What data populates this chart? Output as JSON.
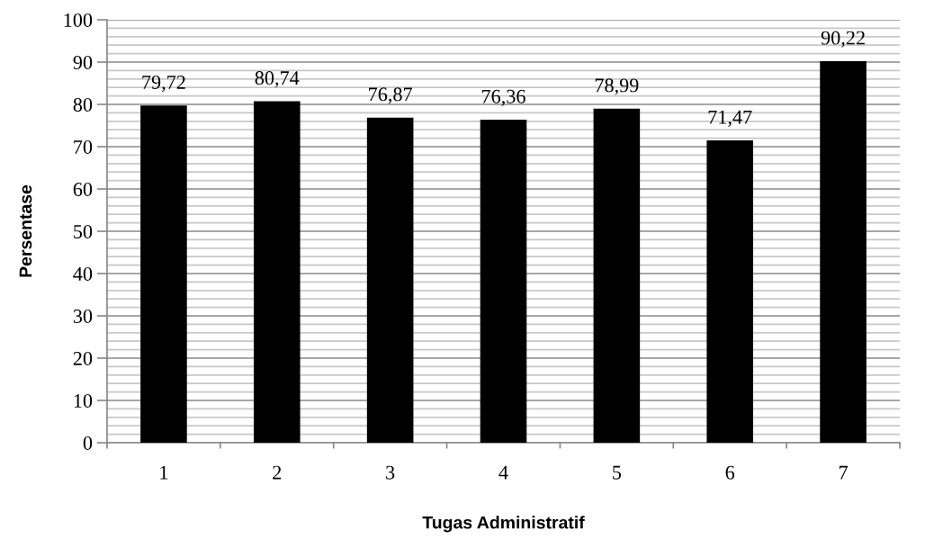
{
  "chart_data": {
    "type": "bar",
    "xlabel": "Tugas Administratif",
    "ylabel": "Persentase",
    "categories": [
      "1",
      "2",
      "3",
      "4",
      "5",
      "6",
      "7"
    ],
    "values": [
      79.72,
      80.74,
      76.87,
      76.36,
      78.99,
      71.47,
      90.22
    ],
    "value_labels": [
      "79,72",
      "80,74",
      "76,87",
      "76,36",
      "78,99",
      "71,47",
      "90,22"
    ],
    "color": "#000000",
    "ylim": [
      0,
      100
    ],
    "yticks": [
      0,
      10,
      20,
      30,
      40,
      50,
      60,
      70,
      80,
      90,
      100
    ],
    "grid": "y",
    "legend": false
  }
}
